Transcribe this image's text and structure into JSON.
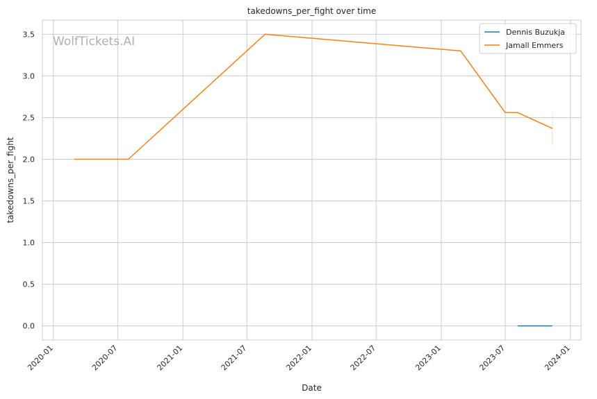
{
  "chart_data": {
    "type": "line",
    "title": "takedowns_per_fight over time",
    "xlabel": "Date",
    "ylabel": "takedowns_per_fight",
    "watermark": "WolfTickets.AI",
    "xlim": [
      "2019-12-01",
      "2024-01-31"
    ],
    "ylim": [
      -0.17,
      3.67
    ],
    "x_ticks": [
      "2020-01-01",
      "2020-07-01",
      "2021-01-01",
      "2021-07-01",
      "2022-01-01",
      "2022-07-01",
      "2023-01-01",
      "2023-07-01",
      "2024-01-01"
    ],
    "x_tick_labels": [
      "2020-01",
      "2020-07",
      "2021-01",
      "2021-07",
      "2022-01",
      "2022-07",
      "2023-01",
      "2023-07",
      "2024-01"
    ],
    "y_ticks": [
      0.0,
      0.5,
      1.0,
      1.5,
      2.0,
      2.5,
      3.0,
      3.5
    ],
    "y_tick_labels": [
      "0.0",
      "0.5",
      "1.0",
      "1.5",
      "2.0",
      "2.5",
      "3.0",
      "3.5"
    ],
    "grid": true,
    "legend_position": "top-right",
    "series": [
      {
        "name": "Dennis Buzukja",
        "color": "#1f77b4",
        "x": [
          "2023-08-05",
          "2023-11-11"
        ],
        "y": [
          0.0,
          0.0
        ]
      },
      {
        "name": "Jamall Emmers",
        "color": "#ff7f0e",
        "x": [
          "2020-02-29",
          "2020-07-31",
          "2021-08-21",
          "2023-02-25",
          "2023-07-01",
          "2023-08-05",
          "2023-11-11"
        ],
        "y": [
          2.0,
          2.0,
          3.5,
          3.3,
          2.56,
          2.56,
          2.37
        ],
        "error_band": {
          "x": "2023-11-11",
          "low": 2.17,
          "high": 2.56
        }
      }
    ]
  }
}
